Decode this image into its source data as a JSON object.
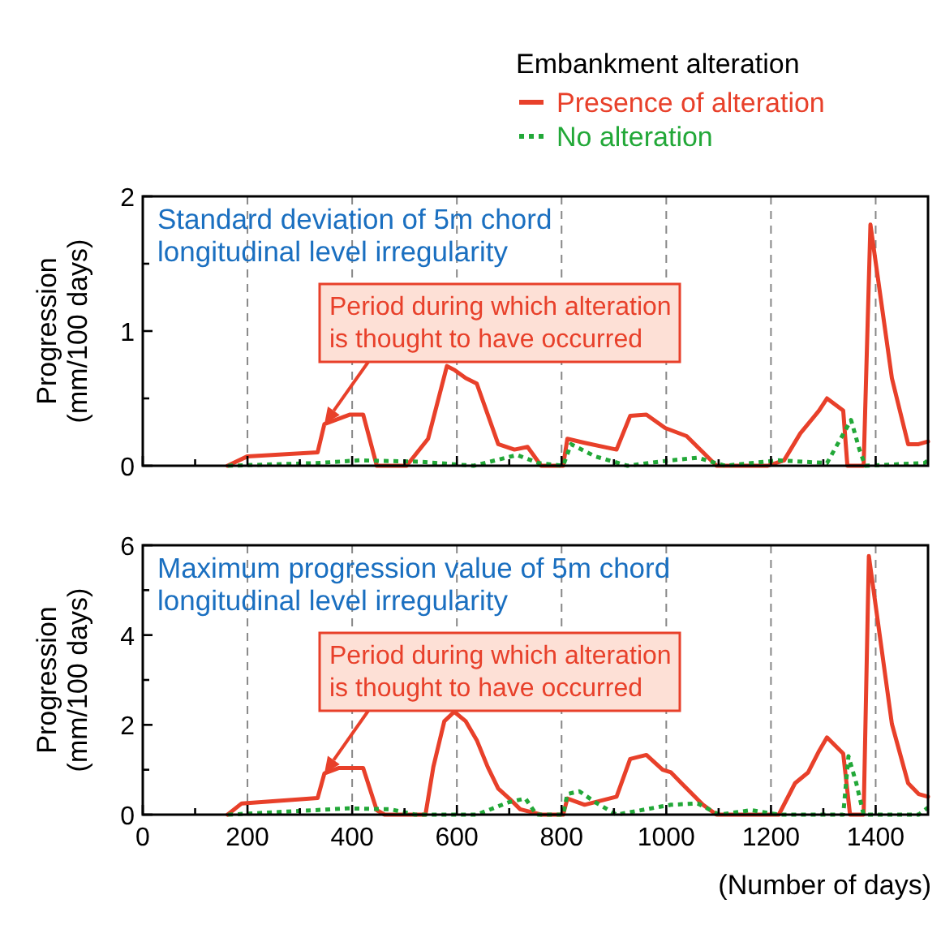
{
  "chart_data": [
    {
      "type": "line",
      "legend": "top right",
      "legend_title": "Embankment alteration",
      "ylabel": "Progression\n(mm/100 days)",
      "xlim": [
        0,
        1500
      ],
      "ylim": [
        0,
        2
      ],
      "tick_labels": "y",
      "grid": "x",
      "xticks": [
        0,
        {
          "value": 100,
          "label": null
        },
        200,
        {
          "value": 300,
          "label": null
        },
        400,
        {
          "value": 500,
          "label": null
        },
        600,
        {
          "value": 700,
          "label": null
        },
        800,
        {
          "value": 900,
          "label": null
        },
        1000,
        {
          "value": 1100,
          "label": null
        },
        1200,
        {
          "value": 1300,
          "label": null
        },
        1400
      ],
      "yticks": [
        0,
        {
          "value": 0.5,
          "label": null
        },
        1,
        {
          "value": 1.5,
          "label": null
        },
        2
      ],
      "annotations": [
        "Standard deviation of 5m chord\nlongitudinal level irregularity",
        {
          "text": "Period during which alteration\nis thought to have occurred",
          "x": 347,
          "y": 0.31
        }
      ],
      "series": [
        {
          "name": "Presence of alteration",
          "color": "#e8402a",
          "line_style": "solid",
          "x": [
            162,
            200,
            334,
            347,
            396,
            421,
            447,
            504,
            545,
            581,
            596,
            617,
            638,
            679,
            710,
            735,
            761,
            803,
            811,
            844,
            905,
            931,
            962,
            998,
            1039,
            1096,
            1194,
            1225,
            1256,
            1292,
            1307,
            1338,
            1346,
            1377,
            1390,
            1431,
            1462,
            1482,
            1500
          ],
          "values": [
            0,
            0.07,
            0.1,
            0.31,
            0.38,
            0.38,
            0,
            0,
            0.2,
            0.74,
            0.71,
            0.65,
            0.61,
            0.16,
            0.12,
            0.14,
            0,
            0,
            0.2,
            0.17,
            0.12,
            0.37,
            0.38,
            0.28,
            0.22,
            0,
            0,
            0.04,
            0.24,
            0.41,
            0.5,
            0.41,
            0,
            0,
            1.79,
            0.65,
            0.16,
            0.16,
            0.18
          ]
        },
        {
          "name": "No alteration",
          "color": "#22a838",
          "line_style": "dotted",
          "x": [
            163,
            332,
            414,
            529,
            632,
            715,
            756,
            803,
            818,
            864,
            926,
            1009,
            1060,
            1112,
            1215,
            1307,
            1353,
            1369,
            1380,
            1493,
            1500
          ],
          "values": [
            0,
            0.02,
            0.04,
            0.03,
            0,
            0.08,
            0.02,
            0,
            0.16,
            0.07,
            0,
            0.04,
            0.06,
            0,
            0.04,
            0.02,
            0.34,
            0.12,
            0,
            0.02,
            0.04
          ]
        }
      ]
    },
    {
      "type": "line",
      "ylabel": "Progression\n(mm/100 days)",
      "xlabel": "(Number of days)",
      "xlim": [
        0,
        1500
      ],
      "ylim": [
        0,
        6
      ],
      "grid": "x",
      "xticks": [
        0,
        {
          "value": 100,
          "label": null
        },
        200,
        {
          "value": 300,
          "label": null
        },
        400,
        {
          "value": 500,
          "label": null
        },
        600,
        {
          "value": 700,
          "label": null
        },
        800,
        {
          "value": 900,
          "label": null
        },
        1000,
        {
          "value": 1100,
          "label": null
        },
        1200,
        {
          "value": 1300,
          "label": null
        },
        1400
      ],
      "yticks": [
        0,
        {
          "value": 1,
          "label": null
        },
        2,
        {
          "value": 3,
          "label": null
        },
        4,
        {
          "value": 5,
          "label": null
        },
        6
      ],
      "annotations": [
        "Maximum progression value of 5m chord\nlongitudinal level irregularity",
        {
          "text": "Period during which alteration\nis thought to have occurred",
          "x": 347,
          "y": 0.92
        }
      ],
      "series": [
        {
          "color": "#e8402a",
          "line_style": "solid",
          "x": [
            162,
            189,
            334,
            347,
            375,
            421,
            447,
            462,
            540,
            555,
            576,
            595,
            617,
            638,
            659,
            679,
            700,
            721,
            761,
            803,
            811,
            844,
            905,
            931,
            962,
            993,
            1009,
            1029,
            1070,
            1096,
            1215,
            1246,
            1271,
            1292,
            1307,
            1338,
            1351,
            1377,
            1387,
            1431,
            1462,
            1482,
            1500
          ],
          "values": [
            0,
            0.25,
            0.37,
            0.92,
            1.04,
            1.04,
            0.1,
            0,
            0,
            1.06,
            2.08,
            2.29,
            2.08,
            1.66,
            1.06,
            0.58,
            0.36,
            0.12,
            0,
            0,
            0.36,
            0.22,
            0.4,
            1.24,
            1.33,
            1,
            0.94,
            0.7,
            0.22,
            0,
            0,
            0.7,
            0.94,
            1.42,
            1.72,
            1.36,
            0,
            0,
            5.76,
            2.02,
            0.7,
            0.46,
            0.4
          ]
        },
        {
          "color": "#22a838",
          "line_style": "dotted",
          "x": [
            163,
            329,
            391,
            473,
            520,
            638,
            700,
            731,
            752,
            803,
            811,
            834,
            864,
            905,
            1009,
            1060,
            1101,
            1163,
            1215,
            1338,
            1348,
            1363,
            1377,
            1482,
            1500
          ],
          "values": [
            0,
            0.1,
            0.14,
            0.12,
            0,
            0,
            0.28,
            0.36,
            0,
            0,
            0.46,
            0.52,
            0.28,
            0,
            0.22,
            0.25,
            0,
            0.1,
            0,
            0,
            1.3,
            0.7,
            0,
            0,
            0.16
          ]
        }
      ]
    }
  ]
}
